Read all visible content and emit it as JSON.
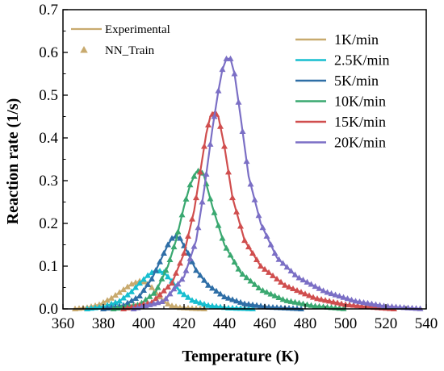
{
  "chart_data": {
    "type": "line",
    "title": "",
    "xlabel": "Temperature (K)",
    "ylabel": "Reaction rate (1/s)",
    "xlim": [
      360,
      540
    ],
    "ylim": [
      0,
      0.7
    ],
    "xticks": [
      "360",
      "380",
      "400",
      "420",
      "440",
      "460",
      "480",
      "500",
      "520",
      "540"
    ],
    "yticks": [
      "0.0",
      "0.1",
      "0.2",
      "0.3",
      "0.4",
      "0.5",
      "0.6",
      "0.7"
    ],
    "marker_legend": [
      {
        "label": "Experimental",
        "symbol": "line",
        "color": "#c8aa6e"
      },
      {
        "label": "NN_Train",
        "symbol": "triangle",
        "color": "#c8aa6e"
      }
    ],
    "series": [
      {
        "name": "1K/min",
        "color": "#c8aa6e",
        "x": [
          366,
          372,
          378,
          384,
          390,
          394,
          398,
          401,
          404,
          407,
          410,
          413,
          418,
          424,
          430
        ],
        "y": [
          0.0,
          0.003,
          0.01,
          0.025,
          0.045,
          0.058,
          0.065,
          0.062,
          0.05,
          0.033,
          0.018,
          0.008,
          0.003,
          0.001,
          0.0
        ]
      },
      {
        "name": "2.5K/min",
        "color": "#17becf",
        "x": [
          372,
          380,
          388,
          394,
          398,
          402,
          405,
          407,
          410,
          414,
          418,
          424,
          432,
          442,
          455
        ],
        "y": [
          0.0,
          0.005,
          0.018,
          0.04,
          0.06,
          0.078,
          0.088,
          0.09,
          0.085,
          0.065,
          0.04,
          0.02,
          0.008,
          0.002,
          0.0
        ]
      },
      {
        "name": "5K/min",
        "color": "#2e6ea6",
        "x": [
          380,
          390,
          398,
          404,
          408,
          412,
          414,
          416,
          418,
          422,
          426,
          432,
          440,
          450,
          462,
          478
        ],
        "y": [
          0.0,
          0.008,
          0.03,
          0.07,
          0.11,
          0.15,
          0.165,
          0.17,
          0.165,
          0.13,
          0.09,
          0.055,
          0.028,
          0.012,
          0.004,
          0.0
        ]
      },
      {
        "name": "10K/min",
        "color": "#3aa870",
        "x": [
          385,
          398,
          406,
          412,
          416,
          420,
          423,
          426,
          428,
          430,
          434,
          440,
          448,
          458,
          470,
          484,
          500
        ],
        "y": [
          0.0,
          0.01,
          0.04,
          0.1,
          0.16,
          0.24,
          0.29,
          0.32,
          0.325,
          0.31,
          0.24,
          0.15,
          0.085,
          0.045,
          0.02,
          0.007,
          0.0
        ]
      },
      {
        "name": "15K/min",
        "color": "#d04e4e",
        "x": [
          390,
          404,
          414,
          420,
          425,
          428,
          431,
          433,
          435,
          437,
          440,
          444,
          450,
          458,
          470,
          485,
          500,
          515,
          524
        ],
        "y": [
          0.0,
          0.015,
          0.06,
          0.13,
          0.23,
          0.32,
          0.41,
          0.45,
          0.46,
          0.45,
          0.38,
          0.26,
          0.16,
          0.1,
          0.055,
          0.025,
          0.01,
          0.003,
          0.0
        ]
      },
      {
        "name": "20K/min",
        "color": "#7b6fc5",
        "x": [
          395,
          410,
          420,
          426,
          430,
          434,
          437,
          439,
          441,
          443,
          445,
          448,
          452,
          458,
          466,
          476,
          490,
          505,
          520,
          538
        ],
        "y": [
          0.0,
          0.018,
          0.075,
          0.16,
          0.28,
          0.42,
          0.51,
          0.56,
          0.585,
          0.585,
          0.55,
          0.45,
          0.31,
          0.2,
          0.12,
          0.075,
          0.04,
          0.018,
          0.006,
          0.0
        ]
      }
    ]
  }
}
